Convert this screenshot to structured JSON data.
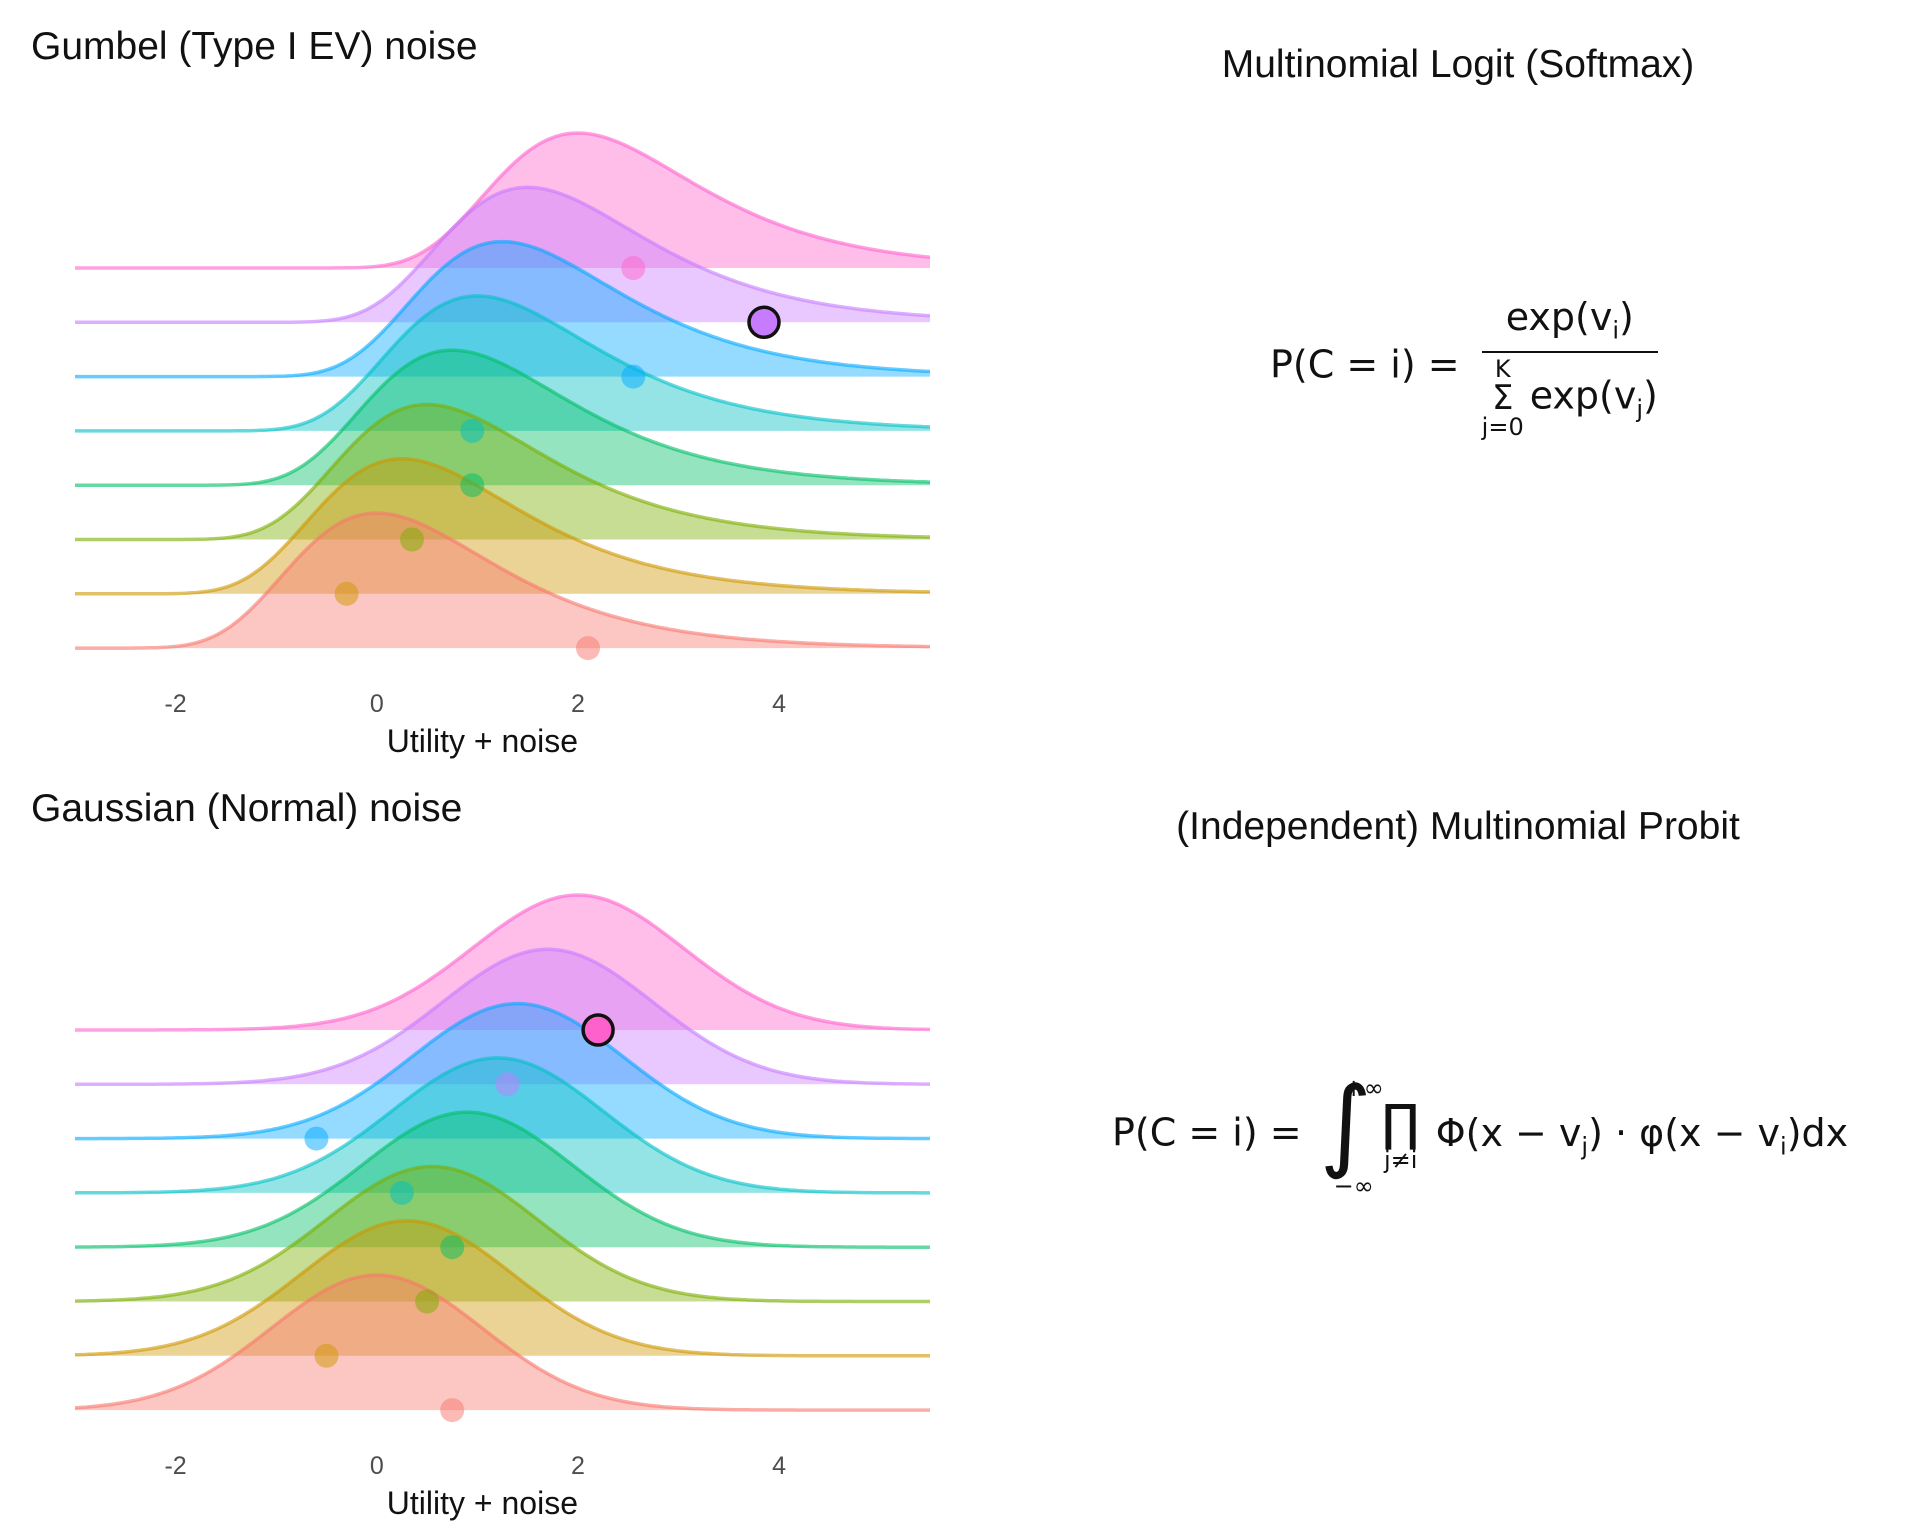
{
  "panels": {
    "gumbel_title": "Gumbel (Type I EV) noise",
    "gauss_title": "Gaussian (Normal) noise",
    "logit_title": "Multinomial Logit (Softmax)",
    "probit_title": "(Independent) Multinomial Probit"
  },
  "formulas": {
    "logit_lhs": "P(C = i) =",
    "logit_num": "exp(v",
    "logit_num_sub": "i",
    "logit_den": "exp(v",
    "logit_den_sub": "j",
    "sum_upper": "K",
    "sum_lower": "j=0",
    "probit_lhs": "P(C = i) =",
    "int_upper": "+∞",
    "int_lower": "−∞",
    "prod_lower": "j≠i",
    "probit_term1": "Φ(x − v",
    "probit_term1_sub": "j",
    "probit_dot": ") · φ(x − v",
    "probit_term2_sub": "i",
    "probit_tail": ")dx"
  },
  "colors": [
    "#F8766D",
    "#CD9600",
    "#7CAE00",
    "#00BE67",
    "#00BFC4",
    "#00A9FF",
    "#C77CFF",
    "#FF61CC"
  ],
  "chart_data": [
    {
      "type": "ridgeline",
      "noise": "gumbel",
      "xlabel": "Utility + noise",
      "xticks": [
        -2,
        0,
        2,
        4
      ],
      "xlim": [
        -3,
        5.5
      ],
      "means": [
        0,
        0.25,
        0.5,
        0.75,
        1.0,
        1.25,
        1.5,
        2.0
      ],
      "samples": [
        2.1,
        -0.3,
        0.35,
        0.95,
        0.95,
        2.55,
        3.85,
        2.55
      ],
      "chosen_index": 6
    },
    {
      "type": "ridgeline",
      "noise": "gaussian",
      "xlabel": "Utility + noise",
      "xticks": [
        -2,
        0,
        2,
        4
      ],
      "xlim": [
        -3,
        5.5
      ],
      "means": [
        0,
        0.3,
        0.55,
        0.9,
        1.2,
        1.4,
        1.7,
        2.0
      ],
      "samples": [
        0.75,
        -0.5,
        0.5,
        0.75,
        0.25,
        -0.6,
        1.3,
        2.2
      ],
      "chosen_index": 7
    }
  ]
}
